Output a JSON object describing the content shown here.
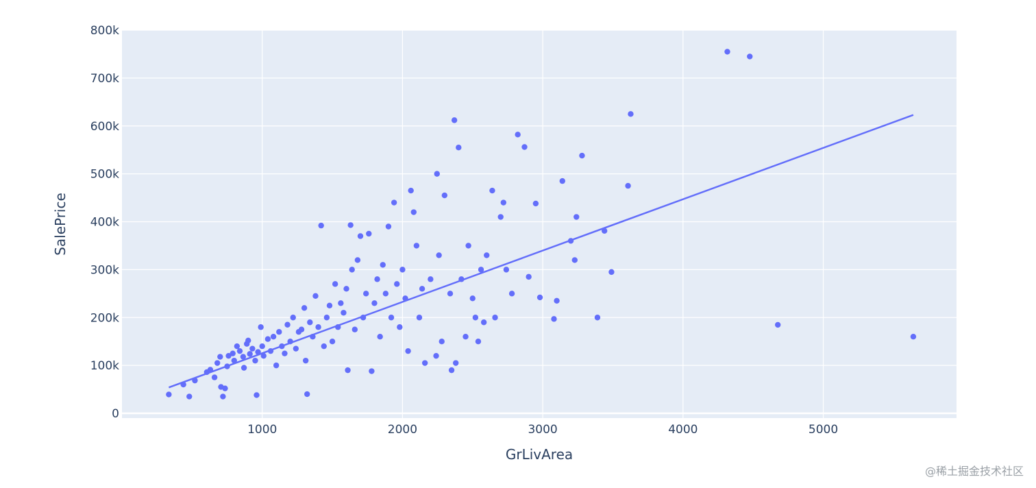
{
  "chart_data": {
    "type": "scatter",
    "title": "",
    "xlabel": "GrLivArea",
    "ylabel": "SalePrice",
    "xlim": [
      0,
      5950
    ],
    "ylim": [
      -10000,
      800000
    ],
    "x_ticks": [
      1000,
      2000,
      3000,
      4000,
      5000
    ],
    "x_tick_labels": [
      "1000",
      "2000",
      "3000",
      "4000",
      "5000"
    ],
    "y_ticks": [
      0,
      100000,
      200000,
      300000,
      400000,
      500000,
      600000,
      700000,
      800000
    ],
    "y_tick_labels": [
      "0",
      "100k",
      "200k",
      "300k",
      "400k",
      "500k",
      "600k",
      "700k",
      "800k"
    ],
    "grid": true,
    "background": "#e5ecf6",
    "marker_color": "#636efa",
    "line_color": "#636efa",
    "trendline": {
      "x": [
        334,
        5642
      ],
      "y": [
        54000,
        623000
      ]
    },
    "series": [
      {
        "values": [
          [
            334,
            39300
          ],
          [
            438,
            60000
          ],
          [
            480,
            35000
          ],
          [
            520,
            68500
          ],
          [
            605,
            86000
          ],
          [
            630,
            91000
          ],
          [
            660,
            75000
          ],
          [
            680,
            105000
          ],
          [
            700,
            118000
          ],
          [
            706,
            55000
          ],
          [
            720,
            35000
          ],
          [
            735,
            52000
          ],
          [
            750,
            98000
          ],
          [
            760,
            120000
          ],
          [
            790,
            125000
          ],
          [
            800,
            110000
          ],
          [
            820,
            140000
          ],
          [
            840,
            130000
          ],
          [
            864,
            118000
          ],
          [
            870,
            95000
          ],
          [
            890,
            145000
          ],
          [
            900,
            152000
          ],
          [
            912,
            124000
          ],
          [
            930,
            135000
          ],
          [
            950,
            110000
          ],
          [
            960,
            38000
          ],
          [
            970,
            128000
          ],
          [
            990,
            180000
          ],
          [
            1000,
            140000
          ],
          [
            1010,
            120000
          ],
          [
            1040,
            155000
          ],
          [
            1060,
            130000
          ],
          [
            1080,
            160000
          ],
          [
            1100,
            100000
          ],
          [
            1120,
            170000
          ],
          [
            1140,
            140000
          ],
          [
            1160,
            125000
          ],
          [
            1180,
            185000
          ],
          [
            1200,
            150000
          ],
          [
            1220,
            200000
          ],
          [
            1240,
            135000
          ],
          [
            1260,
            170000
          ],
          [
            1280,
            175000
          ],
          [
            1300,
            220000
          ],
          [
            1310,
            110000
          ],
          [
            1320,
            40000
          ],
          [
            1340,
            190000
          ],
          [
            1360,
            160000
          ],
          [
            1380,
            245000
          ],
          [
            1400,
            180000
          ],
          [
            1420,
            392000
          ],
          [
            1440,
            140000
          ],
          [
            1460,
            200000
          ],
          [
            1480,
            225000
          ],
          [
            1500,
            150000
          ],
          [
            1520,
            270000
          ],
          [
            1540,
            180000
          ],
          [
            1560,
            230000
          ],
          [
            1580,
            210000
          ],
          [
            1600,
            260000
          ],
          [
            1610,
            90000
          ],
          [
            1630,
            393000
          ],
          [
            1640,
            300000
          ],
          [
            1660,
            175000
          ],
          [
            1680,
            320000
          ],
          [
            1700,
            370000
          ],
          [
            1720,
            200000
          ],
          [
            1740,
            250000
          ],
          [
            1760,
            375000
          ],
          [
            1780,
            88000
          ],
          [
            1800,
            230000
          ],
          [
            1820,
            280000
          ],
          [
            1840,
            160000
          ],
          [
            1860,
            310000
          ],
          [
            1880,
            250000
          ],
          [
            1900,
            390000
          ],
          [
            1920,
            200000
          ],
          [
            1940,
            440000
          ],
          [
            1960,
            270000
          ],
          [
            1980,
            180000
          ],
          [
            2000,
            300000
          ],
          [
            2020,
            240000
          ],
          [
            2040,
            130000
          ],
          [
            2060,
            465000
          ],
          [
            2080,
            420000
          ],
          [
            2100,
            350000
          ],
          [
            2120,
            200000
          ],
          [
            2140,
            260000
          ],
          [
            2160,
            105000
          ],
          [
            2200,
            280000
          ],
          [
            2240,
            120000
          ],
          [
            2246,
            500000
          ],
          [
            2260,
            330000
          ],
          [
            2280,
            150000
          ],
          [
            2300,
            455000
          ],
          [
            2340,
            250000
          ],
          [
            2350,
            90000
          ],
          [
            2370,
            612000
          ],
          [
            2380,
            105000
          ],
          [
            2400,
            555000
          ],
          [
            2420,
            280000
          ],
          [
            2450,
            160000
          ],
          [
            2470,
            350000
          ],
          [
            2500,
            240000
          ],
          [
            2520,
            200000
          ],
          [
            2540,
            150000
          ],
          [
            2560,
            300000
          ],
          [
            2580,
            190000
          ],
          [
            2600,
            330000
          ],
          [
            2640,
            465000
          ],
          [
            2660,
            200000
          ],
          [
            2700,
            410000
          ],
          [
            2720,
            440000
          ],
          [
            2740,
            300000
          ],
          [
            2780,
            250000
          ],
          [
            2822,
            582000
          ],
          [
            2870,
            556000
          ],
          [
            2900,
            285000
          ],
          [
            2950,
            438000
          ],
          [
            2980,
            242000
          ],
          [
            3080,
            197000
          ],
          [
            3100,
            235000
          ],
          [
            3140,
            485000
          ],
          [
            3200,
            360000
          ],
          [
            3228,
            320000
          ],
          [
            3240,
            410000
          ],
          [
            3280,
            538000
          ],
          [
            3390,
            200000
          ],
          [
            3440,
            381000
          ],
          [
            3490,
            295000
          ],
          [
            3608,
            475000
          ],
          [
            3627,
            625000
          ],
          [
            4316,
            755000
          ],
          [
            4476,
            745000
          ],
          [
            4676,
            184750
          ],
          [
            5642,
            160000
          ]
        ]
      }
    ]
  },
  "watermark": "@稀土掘金技术社区"
}
